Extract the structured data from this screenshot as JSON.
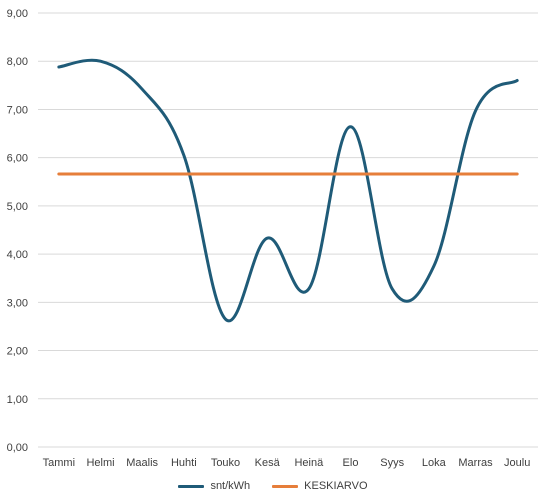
{
  "chart_data": {
    "type": "line",
    "categories": [
      "Tammi",
      "Helmi",
      "Maalis",
      "Huhti",
      "Touko",
      "Kesä",
      "Heinä",
      "Elo",
      "Syys",
      "Loka",
      "Marras",
      "Joulu"
    ],
    "series": [
      {
        "name": "snt/kWh",
        "color": "#1f5b78",
        "values": [
          7.88,
          8.0,
          7.42,
          6.05,
          2.65,
          4.33,
          3.28,
          6.64,
          3.28,
          3.75,
          6.97,
          7.6
        ]
      },
      {
        "name": "KESKIARVO",
        "color": "#e67e3a",
        "values": [
          5.66,
          5.66,
          5.66,
          5.66,
          5.66,
          5.66,
          5.66,
          5.66,
          5.66,
          5.66,
          5.66,
          5.66
        ]
      }
    ],
    "yticks": [
      "0,00",
      "1,00",
      "2,00",
      "3,00",
      "4,00",
      "5,00",
      "6,00",
      "7,00",
      "8,00",
      "9,00"
    ],
    "ylim": [
      0,
      9
    ],
    "grid": true,
    "legend_position": "bottom"
  }
}
